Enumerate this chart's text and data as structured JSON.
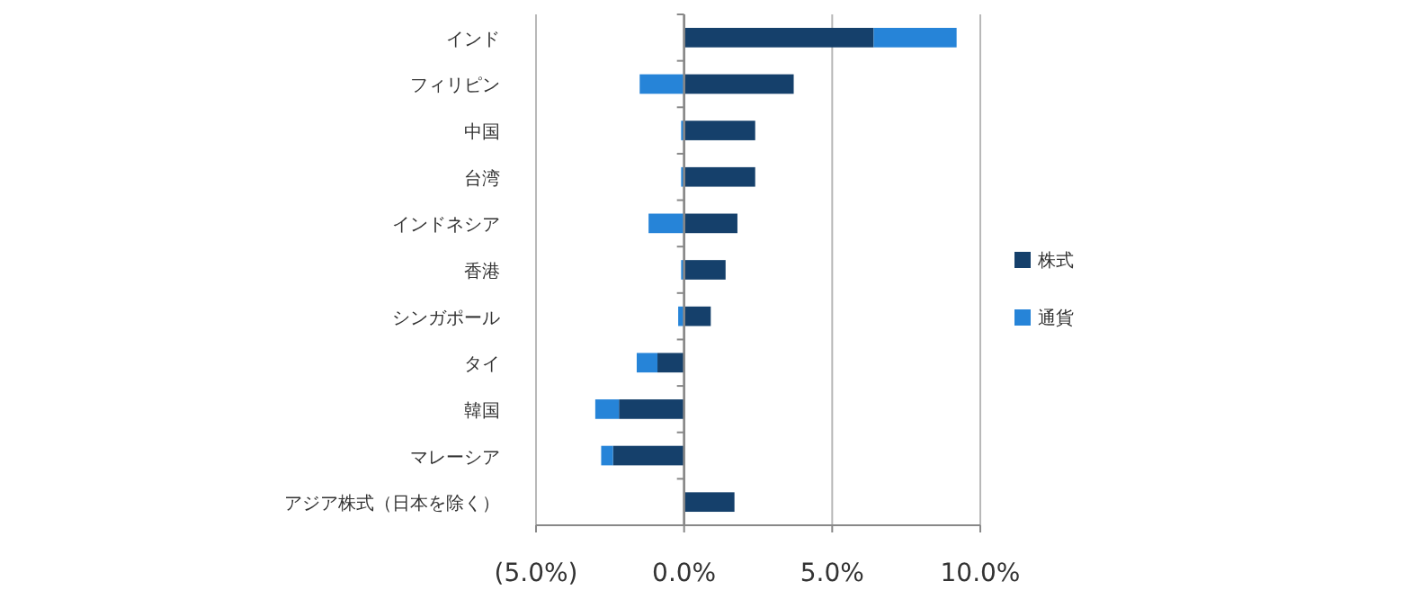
{
  "chart_data": {
    "type": "bar",
    "orientation": "horizontal",
    "stacked": true,
    "categories": [
      "インド",
      "フィリピン",
      "中国",
      "台湾",
      "インドネシア",
      "香港",
      "シンガポール",
      "タイ",
      "韓国",
      "マレーシア",
      "アジア株式（日本を除く）"
    ],
    "series": [
      {
        "name": "株式",
        "color": "#15406b",
        "values": [
          6.4,
          3.7,
          2.4,
          2.4,
          1.8,
          1.4,
          0.9,
          -0.9,
          -2.2,
          -2.4,
          1.7
        ]
      },
      {
        "name": "通貨",
        "color": "#2684d8",
        "values": [
          2.8,
          -1.5,
          -0.1,
          -0.1,
          -1.2,
          -0.1,
          -0.2,
          -0.7,
          -0.8,
          -0.4,
          0
        ]
      }
    ],
    "xlim": [
      -5,
      10
    ],
    "xticks": [
      {
        "value": -5,
        "label": "(5.0%)"
      },
      {
        "value": 0,
        "label": "0.0%"
      },
      {
        "value": 5,
        "label": "5.0%"
      },
      {
        "value": 10,
        "label": "10.0%"
      }
    ],
    "grid": "x",
    "legend": "right"
  }
}
